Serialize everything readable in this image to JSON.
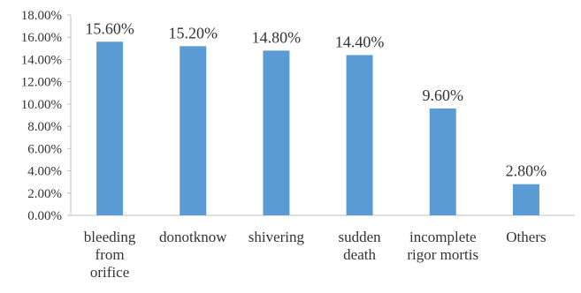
{
  "chart_data": {
    "type": "bar",
    "categories": [
      [
        "bleeding",
        "from",
        "orifice"
      ],
      [
        "donotknow"
      ],
      [
        "shivering"
      ],
      [
        "sudden",
        "death"
      ],
      [
        "incomplete",
        "rigor mortis"
      ],
      [
        "Others"
      ]
    ],
    "values": [
      15.6,
      15.2,
      14.8,
      14.4,
      9.6,
      2.8
    ],
    "value_labels": [
      "15.60%",
      "15.20%",
      "14.80%",
      "14.40%",
      "9.60%",
      "2.80%"
    ],
    "ylim": [
      0,
      18
    ],
    "yticks": [
      0,
      2,
      4,
      6,
      8,
      10,
      12,
      14,
      16,
      18
    ],
    "ytick_labels": [
      "0.00%",
      "2.00%",
      "4.00%",
      "6.00%",
      "8.00%",
      "10.00%",
      "12.00%",
      "14.00%",
      "16.00%",
      "18.00%"
    ],
    "grid": false,
    "bar_color": "#5B9BD5",
    "axis_color": "#BFBFBF"
  }
}
